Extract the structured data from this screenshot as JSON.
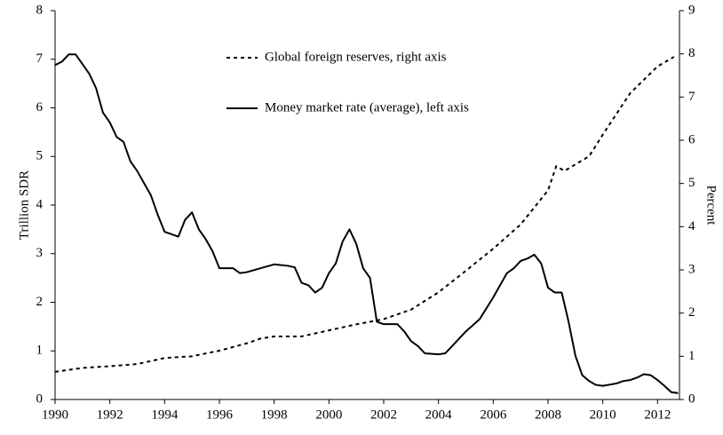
{
  "chart_data": {
    "type": "line",
    "y_label": "Trillion SDR",
    "y2_label": "Percent",
    "xlim": [
      1990,
      2012.8
    ],
    "xticks": [
      1990,
      1992,
      1994,
      1996,
      1998,
      2000,
      2002,
      2004,
      2006,
      2008,
      2010,
      2012
    ],
    "ylim": [
      0,
      8
    ],
    "yticks": [
      0,
      1,
      2,
      3,
      4,
      5,
      6,
      7,
      8
    ],
    "y2lim": [
      0,
      9
    ],
    "y2ticks": [
      0,
      1,
      2,
      3,
      4,
      5,
      6,
      7,
      8,
      9
    ],
    "grid": false,
    "series": [
      {
        "name": "Global foreign reserves, right axis",
        "color": "#000000",
        "style": "dashed",
        "axis": "y2",
        "x": [
          1990,
          1991,
          1992,
          1993,
          1994,
          1995,
          1996,
          1997,
          1997.5,
          1998,
          1999,
          2000,
          2001,
          2002,
          2003,
          2004,
          2005,
          2006,
          2007,
          2008,
          2008.3,
          2008.6,
          2009.5,
          2010,
          2011,
          2012,
          2012.6
        ],
        "values": [
          0.64,
          0.73,
          0.77,
          0.82,
          0.96,
          1.0,
          1.13,
          1.3,
          1.41,
          1.46,
          1.46,
          1.6,
          1.74,
          1.86,
          2.08,
          2.48,
          2.98,
          3.49,
          4.05,
          4.84,
          5.4,
          5.29,
          5.63,
          6.13,
          7.09,
          7.71,
          7.93
        ]
      },
      {
        "name": "Money market rate (average), left axis",
        "color": "#000000",
        "style": "solid",
        "axis": "y",
        "x": [
          1990,
          1990.25,
          1990.5,
          1990.75,
          1991,
          1991.25,
          1991.5,
          1991.75,
          1992,
          1992.25,
          1992.5,
          1992.75,
          1993,
          1993.25,
          1993.5,
          1993.75,
          1994,
          1994.25,
          1994.5,
          1994.75,
          1995,
          1995.25,
          1995.5,
          1995.75,
          1996,
          1996.5,
          1996.75,
          1997,
          1997.5,
          1998,
          1998.5,
          1998.75,
          1999,
          1999.25,
          1999.5,
          1999.75,
          2000,
          2000.25,
          2000.5,
          2000.75,
          2001,
          2001.25,
          2001.5,
          2001.75,
          2002,
          2002.5,
          2002.75,
          2003,
          2003.25,
          2003.5,
          2004,
          2004.25,
          2004.5,
          2005,
          2005.5,
          2006,
          2006.5,
          2006.75,
          2007,
          2007.25,
          2007.5,
          2007.75,
          2008,
          2008.25,
          2008.5,
          2008.75,
          2009,
          2009.25,
          2009.5,
          2009.75,
          2010,
          2010.5,
          2010.75,
          2011,
          2011.25,
          2011.5,
          2011.75,
          2012,
          2012.25,
          2012.5,
          2012.75
        ],
        "values": [
          6.88,
          6.95,
          7.1,
          7.1,
          6.9,
          6.7,
          6.4,
          5.9,
          5.7,
          5.4,
          5.3,
          4.9,
          4.7,
          4.45,
          4.2,
          3.8,
          3.45,
          3.4,
          3.35,
          3.7,
          3.85,
          3.5,
          3.3,
          3.05,
          2.7,
          2.7,
          2.6,
          2.62,
          2.7,
          2.78,
          2.75,
          2.72,
          2.4,
          2.35,
          2.2,
          2.3,
          2.6,
          2.8,
          3.25,
          3.5,
          3.2,
          2.7,
          2.5,
          1.6,
          1.55,
          1.55,
          1.4,
          1.2,
          1.1,
          0.95,
          0.93,
          0.95,
          1.1,
          1.4,
          1.65,
          2.1,
          2.6,
          2.7,
          2.85,
          2.9,
          2.98,
          2.8,
          2.3,
          2.2,
          2.2,
          1.6,
          0.9,
          0.5,
          0.38,
          0.3,
          0.28,
          0.33,
          0.38,
          0.4,
          0.45,
          0.52,
          0.5,
          0.4,
          0.28,
          0.15,
          0.13
        ]
      }
    ]
  }
}
